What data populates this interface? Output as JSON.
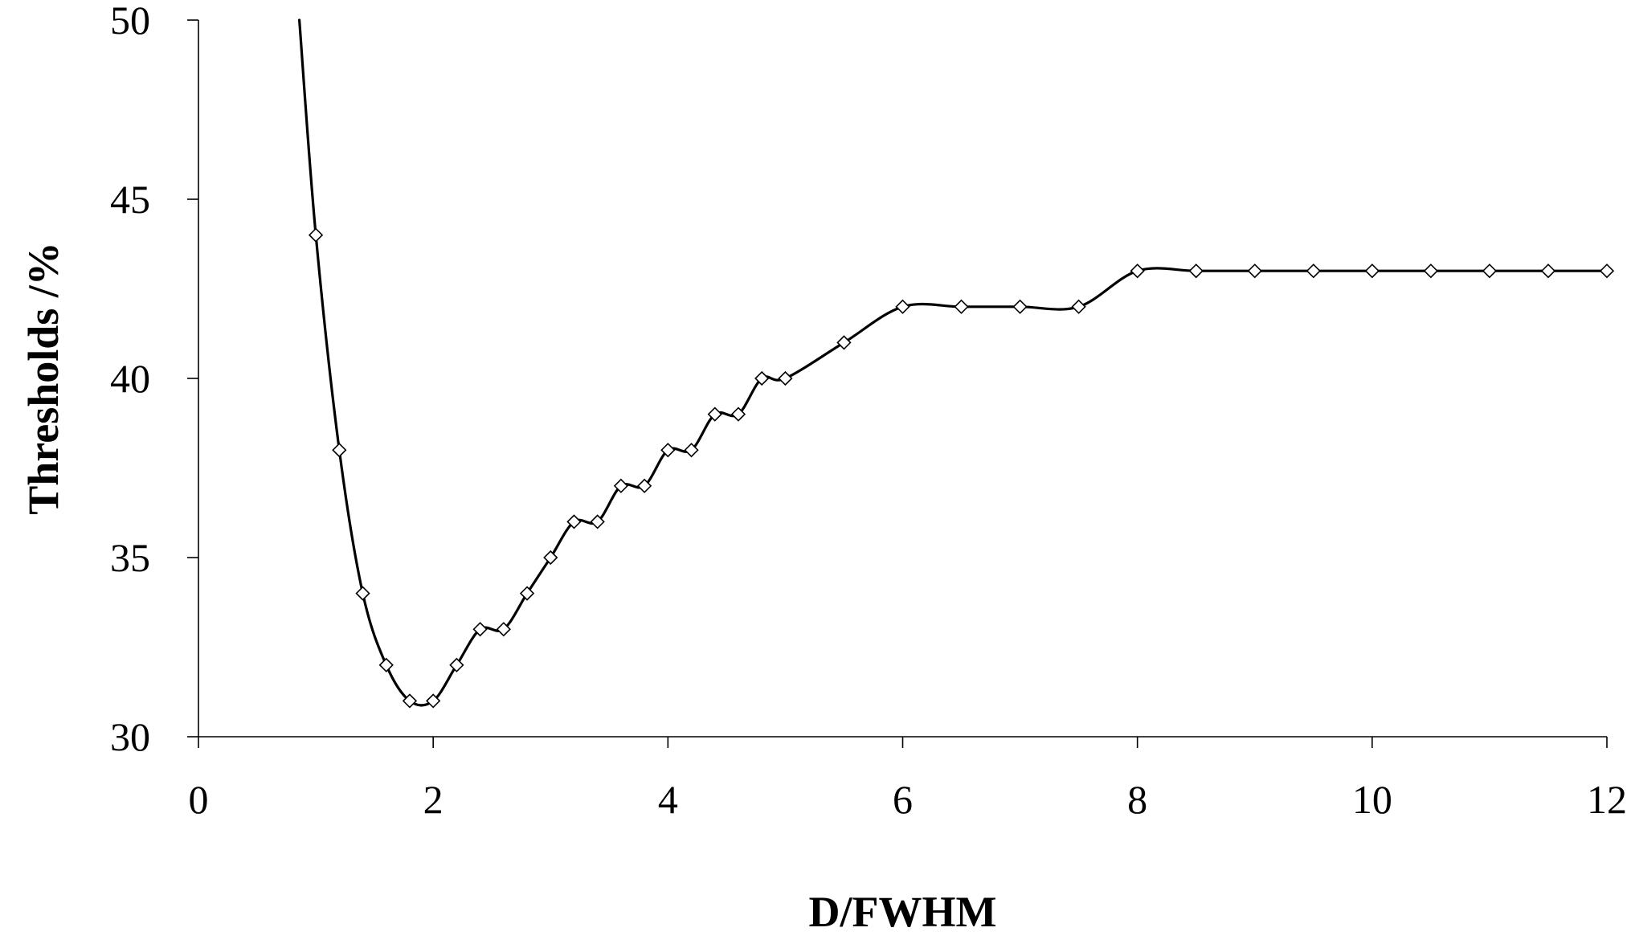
{
  "chart_data": {
    "type": "line",
    "xlabel": "D/FWHM",
    "ylabel": "Thresholds /%",
    "xlim": [
      0,
      12
    ],
    "ylim": [
      30,
      50
    ],
    "xticks": [
      "0",
      "2",
      "4",
      "6",
      "8",
      "10",
      "12"
    ],
    "yticks": [
      "30",
      "35",
      "40",
      "45",
      "50"
    ],
    "grid": false,
    "legend": "none",
    "series": [
      {
        "marker": "diamond",
        "curve_start": [
          0.86,
          50
        ],
        "x": [
          1.0,
          1.2,
          1.4,
          1.6,
          1.8,
          2.0,
          2.2,
          2.4,
          2.6,
          2.8,
          3.0,
          3.2,
          3.4,
          3.6,
          3.8,
          4.0,
          4.2,
          4.4,
          4.6,
          4.8,
          5.0,
          5.5,
          6.0,
          6.5,
          7.0,
          7.5,
          8.0,
          8.5,
          9.0,
          9.5,
          10.0,
          10.5,
          11.0,
          11.5,
          12.0
        ],
        "y": [
          44,
          38,
          34,
          32,
          31,
          31,
          32,
          33,
          33,
          34,
          35,
          36,
          36,
          37,
          37,
          38,
          38,
          39,
          39,
          40,
          40,
          41,
          42,
          42,
          42,
          42,
          43,
          43,
          43,
          43,
          43,
          43,
          43,
          43,
          43
        ]
      }
    ]
  }
}
